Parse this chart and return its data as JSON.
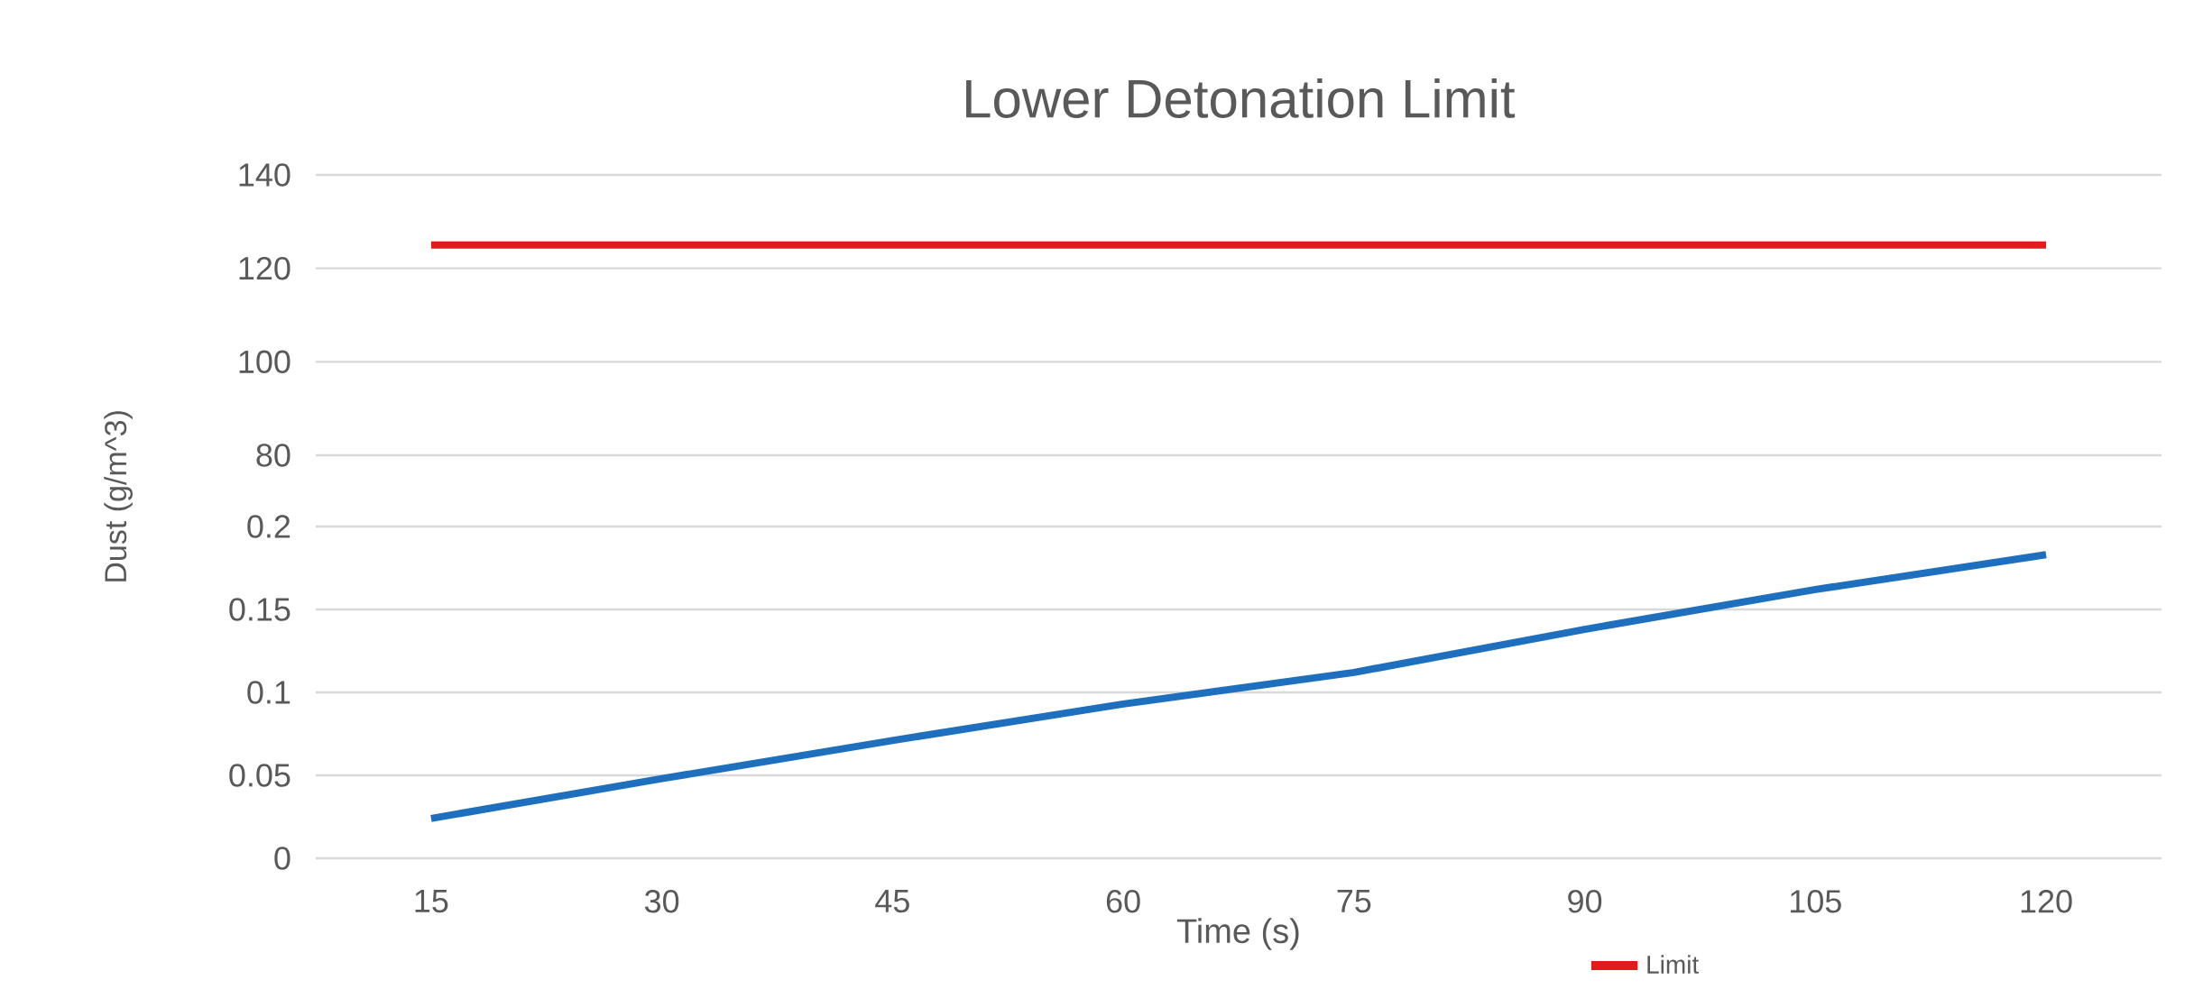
{
  "chart_data": [
    {
      "type": "line",
      "title": "Lower Detonation Limit",
      "categories": [
        "15",
        "30",
        "45",
        "60",
        "75",
        "90",
        "105",
        "120"
      ],
      "series": [
        {
          "name": "Limit",
          "color": "#e31a1c",
          "values": [
            125,
            125,
            125,
            125,
            125,
            125,
            125,
            125
          ]
        }
      ],
      "ylim": [
        80,
        140
      ],
      "yticks": [
        80,
        100,
        120,
        140
      ],
      "grid": "y",
      "legend": "bottom",
      "tick_labels": "y"
    },
    {
      "type": "line",
      "xlabel": "Time (s)",
      "ylabel": "Dust (g/m^3)",
      "categories": [
        "15",
        "30",
        "45",
        "60",
        "75",
        "90",
        "105",
        "120"
      ],
      "series": [
        {
          "color": "#1f6fbf",
          "values": [
            0.024,
            0.048,
            0.071,
            0.093,
            0.112,
            0.138,
            0.162,
            0.183
          ]
        }
      ],
      "ylim": [
        0,
        0.2
      ],
      "yticks": [
        0,
        0.05,
        0.1,
        0.15,
        0.2
      ],
      "grid": "y"
    }
  ]
}
